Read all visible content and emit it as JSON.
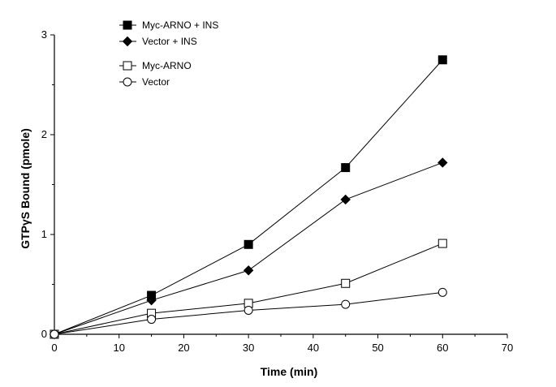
{
  "chart_data": {
    "type": "line",
    "title": "",
    "xlabel": "Time (min)",
    "ylabel": "GTPγS Bound (pmole)",
    "xlim": [
      0,
      70
    ],
    "ylim": [
      0,
      3
    ],
    "x_ticks": [
      "0",
      "10",
      "20",
      "30",
      "40",
      "50",
      "60",
      "70"
    ],
    "y_ticks": [
      "0",
      "1",
      "2",
      "3"
    ],
    "grid": false,
    "legend_position": "top-left",
    "x": [
      0,
      15,
      30,
      45,
      60
    ],
    "series": [
      {
        "name": "Myc-ARNO + INS",
        "marker": "filled-square",
        "values": [
          0,
          0.39,
          0.9,
          1.67,
          2.75
        ]
      },
      {
        "name": "Vector + INS",
        "marker": "filled-diamond",
        "values": [
          0,
          0.34,
          0.64,
          1.35,
          1.72
        ]
      },
      {
        "name": "Myc-ARNO",
        "marker": "open-square",
        "values": [
          0,
          0.21,
          0.31,
          0.51,
          0.91
        ]
      },
      {
        "name": "Vector",
        "marker": "open-circle",
        "values": [
          0,
          0.15,
          0.24,
          0.3,
          0.42
        ]
      }
    ]
  }
}
